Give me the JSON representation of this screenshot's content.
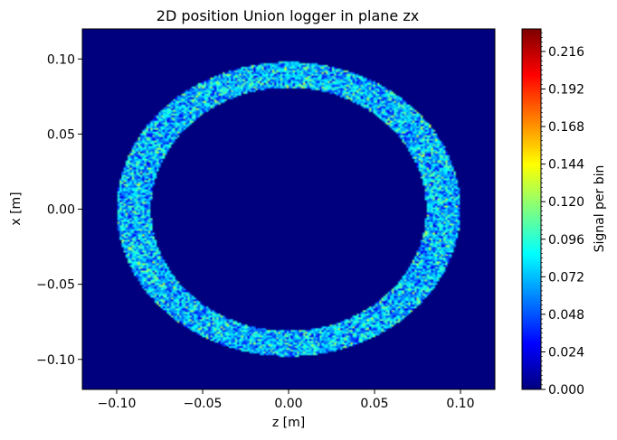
{
  "chart_data": {
    "type": "heatmap",
    "title": "2D position Union logger in plane zx",
    "xlabel": "z [m]",
    "ylabel": "x [m]",
    "xlim": [
      -0.12,
      0.12
    ],
    "ylim": [
      -0.12,
      0.12
    ],
    "x_ticks": [
      -0.1,
      -0.05,
      0.0,
      0.05,
      0.1
    ],
    "x_tick_labels": [
      "−0.10",
      "−0.05",
      "0.00",
      "0.05",
      "0.10"
    ],
    "y_ticks": [
      -0.1,
      -0.05,
      0.0,
      0.05,
      0.1
    ],
    "y_tick_labels": [
      "−0.10",
      "−0.05",
      "0.00",
      "0.05",
      "0.10"
    ],
    "grid": false,
    "colormap": "jet",
    "background_color": "#00007f",
    "annulus": {
      "center": [
        0.0,
        0.0
      ],
      "inner_radius_z": 0.08,
      "outer_radius_z": 0.1,
      "inner_radius_x": 0.081,
      "outer_radius_x": 0.098,
      "typical_signal": 0.072,
      "signal_range": [
        0.024,
        0.168
      ]
    },
    "colorbar": {
      "label": "Signal per bin",
      "min": 0.0,
      "max": 0.2304,
      "ticks": [
        0.0,
        0.024,
        0.048,
        0.072,
        0.096,
        0.12,
        0.144,
        0.168,
        0.192,
        0.216
      ],
      "tick_labels": [
        "0.000",
        "0.024",
        "0.048",
        "0.072",
        "0.096",
        "0.120",
        "0.144",
        "0.168",
        "0.192",
        "0.216"
      ]
    }
  }
}
